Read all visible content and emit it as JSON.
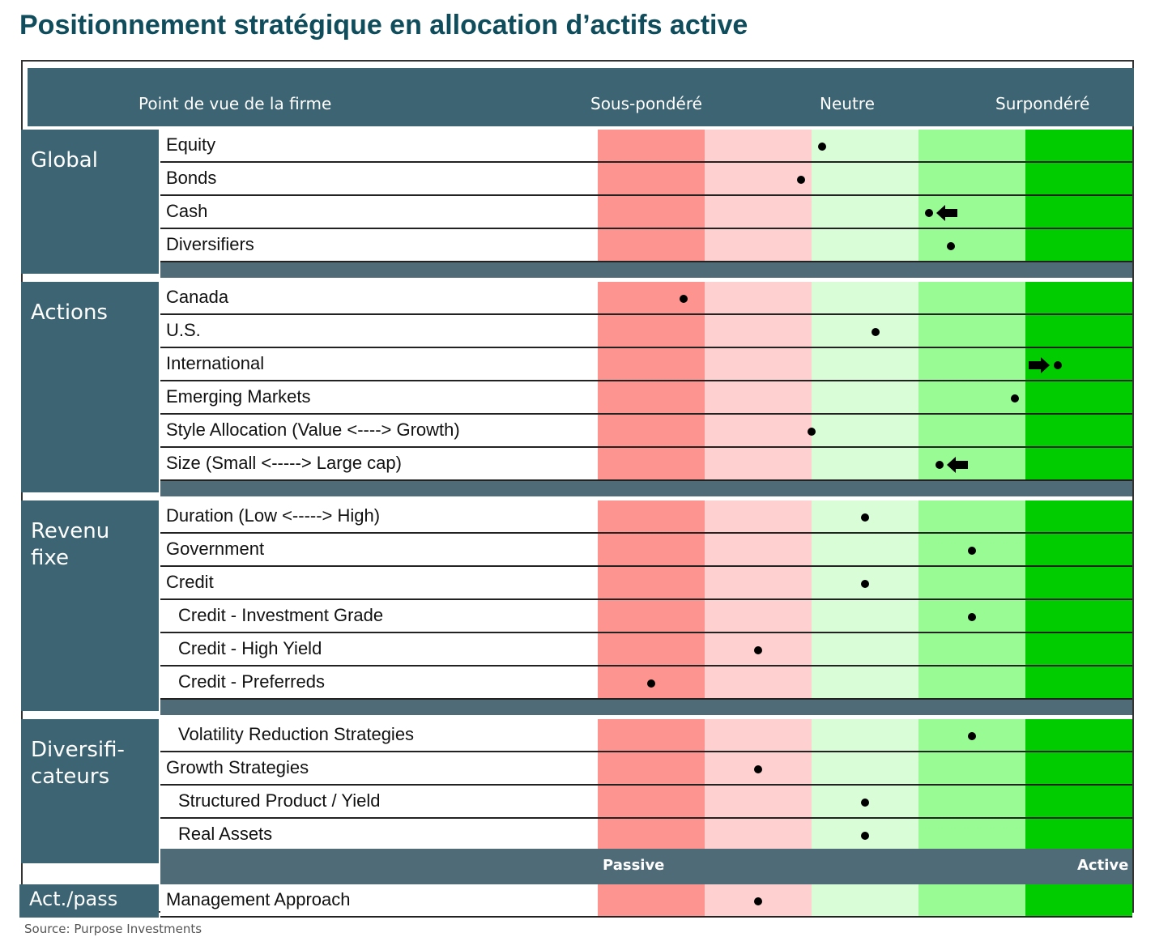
{
  "title": "Positionnement stratégique en allocation d’actifs active",
  "header": {
    "view": "Point de vue de la firme",
    "under": "Sous-pondéré",
    "neutral": "Neutre",
    "over": "Surpondéré"
  },
  "xlim": [
    0,
    5
  ],
  "colors": [
    "#fe9490",
    "#fed0cf",
    "#d9fed7",
    "#99fb94",
    "#00cc00"
  ],
  "groups": [
    {
      "label": "Global",
      "rows": [
        {
          "label": "Equity",
          "value": 2.1
        },
        {
          "label": "Bonds",
          "value": 1.9
        },
        {
          "label": "Cash",
          "value": 3.1,
          "arrow": "left"
        },
        {
          "label": "Diversifiers",
          "value": 3.3
        }
      ]
    },
    {
      "label": "Actions",
      "rows": [
        {
          "label": "Canada",
          "value": 0.8
        },
        {
          "label": "U.S.",
          "value": 2.6
        },
        {
          "label": "International",
          "value": 4.3,
          "arrow": "right"
        },
        {
          "label": "Emerging Markets",
          "value": 3.9
        },
        {
          "label": "Style Allocation (Value <----> Growth)",
          "value": 2.0
        },
        {
          "label": "Size (Small <-----> Large cap)",
          "value": 3.2,
          "arrow": "left"
        }
      ]
    },
    {
      "label": "Revenu\nfixe",
      "rows": [
        {
          "label": "Duration (Low <-----> High)",
          "value": 2.5
        },
        {
          "label": "Government",
          "value": 3.5
        },
        {
          "label": "Credit",
          "value": 2.5
        },
        {
          "label": "Credit - Investment Grade",
          "value": 3.5,
          "indent": true
        },
        {
          "label": "Credit - High Yield",
          "value": 1.5,
          "indent": true
        },
        {
          "label": "Credit - Preferreds",
          "value": 0.5,
          "indent": true
        }
      ]
    },
    {
      "label": "Diversifi-\ncateurs",
      "rows": [
        {
          "label": "Volatility Reduction Strategies",
          "value": 3.5,
          "indent": true
        },
        {
          "label": "Growth Strategies",
          "value": 1.5
        },
        {
          "label": "Structured Product / Yield",
          "value": 2.5,
          "indent": true
        },
        {
          "label": "Real Assets",
          "value": 2.5,
          "indent": true
        }
      ]
    },
    {
      "label": "Act./pass",
      "band": {
        "left": "Passive",
        "right": "Active"
      },
      "rows": [
        {
          "label": "Management Approach",
          "value": 1.5
        }
      ]
    }
  ],
  "source": "Source: Purpose Investments"
}
